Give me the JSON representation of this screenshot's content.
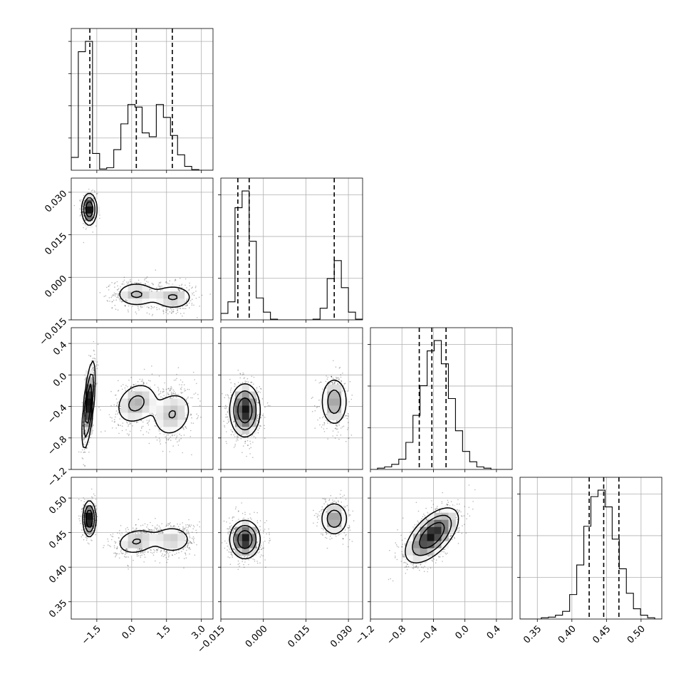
{
  "chart_data": {
    "type": "corner",
    "style": {
      "grid": true,
      "quantile_lines": "dashed",
      "points_color": "#000000",
      "lines_color": "#000000"
    },
    "parameters": [
      {
        "range": [
          -2.6,
          3.5
        ],
        "ticks": [
          -1.5,
          0.0,
          1.5,
          3.0
        ],
        "tick_labels": [
          "−1.5",
          "0.0",
          "1.5",
          "3.0"
        ],
        "quantiles": [
          -1.8,
          0.2,
          1.75
        ],
        "modes": [
          {
            "mu": -1.85,
            "sigma": 0.15,
            "w": 0.33
          },
          {
            "mu": 0.2,
            "sigma": 0.5,
            "w": 0.33
          },
          {
            "mu": 1.75,
            "sigma": 0.5,
            "w": 0.34
          }
        ],
        "histogram": [
          0.1,
          0.92,
          1.0,
          0.13,
          0.01,
          0.02,
          0.16,
          0.36,
          0.51,
          0.49,
          0.29,
          0.26,
          0.51,
          0.41,
          0.27,
          0.12,
          0.03,
          0.005,
          0.0,
          0.0
        ]
      },
      {
        "range": [
          -0.015,
          0.035
        ],
        "ticks": [
          -0.015,
          0.0,
          0.015,
          0.03
        ],
        "tick_labels": [
          "−0.015",
          "0.000",
          "0.015",
          "0.030"
        ],
        "quantiles": [
          -0.009,
          -0.005,
          0.025
        ],
        "modes": [
          {
            "mu": -0.007,
            "sigma": 0.002,
            "w": 0.67
          },
          {
            "mu": 0.025,
            "sigma": 0.002,
            "w": 0.33
          }
        ],
        "histogram": [
          0.05,
          0.14,
          0.87,
          1.0,
          0.61,
          0.17,
          0.06,
          0.005,
          0.0,
          0.0,
          0.0,
          0.0,
          0.0,
          0.005,
          0.09,
          0.32,
          0.46,
          0.25,
          0.06,
          0.005
        ]
      },
      {
        "range": [
          -1.2,
          0.6
        ],
        "ticks": [
          -1.2,
          -0.8,
          -0.4,
          0.0,
          0.4
        ],
        "tick_labels": [
          "−1.2",
          "−0.8",
          "−0.4",
          "0.0",
          "0.4"
        ],
        "quantiles": [
          -0.58,
          -0.42,
          -0.24
        ],
        "modes": [
          {
            "mu": -0.42,
            "sigma": 0.17,
            "w": 1.0
          }
        ],
        "histogram": [
          0.0,
          0.01,
          0.02,
          0.04,
          0.08,
          0.21,
          0.42,
          0.65,
          0.92,
          1.0,
          0.82,
          0.55,
          0.3,
          0.14,
          0.06,
          0.02,
          0.01,
          0.0,
          0.0,
          0.0
        ]
      },
      {
        "range": [
          0.325,
          0.53
        ],
        "ticks": [
          0.35,
          0.4,
          0.45,
          0.5
        ],
        "tick_labels": [
          "0.35",
          "0.40",
          "0.45",
          "0.50"
        ],
        "quantiles": [
          0.425,
          0.446,
          0.468
        ],
        "modes": [
          {
            "mu": 0.446,
            "sigma": 0.02,
            "w": 1.0
          }
        ],
        "histogram": [
          0.0,
          0.0,
          0.0,
          0.01,
          0.015,
          0.03,
          0.06,
          0.19,
          0.42,
          0.72,
          0.95,
          1.0,
          0.87,
          0.62,
          0.39,
          0.2,
          0.08,
          0.03,
          0.01,
          0.0
        ]
      }
    ],
    "diagonal_yticks": [
      4,
      3,
      3,
      3
    ],
    "blobs": [
      {
        "pair": [
          1,
          0
        ],
        "comps": [
          {
            "mx": -1.82,
            "my": 0.024,
            "sx": 0.16,
            "sy": 0.0028,
            "rho": 0.0,
            "w": 0.33
          },
          {
            "mx": 0.2,
            "my": -0.006,
            "sx": 0.5,
            "sy": 0.0025,
            "rho": 0.0,
            "w": 0.34
          },
          {
            "mx": 1.78,
            "my": -0.007,
            "sx": 0.5,
            "sy": 0.0025,
            "rho": 0.0,
            "w": 0.33
          }
        ]
      },
      {
        "pair": [
          2,
          0
        ],
        "comps": [
          {
            "mx": -1.85,
            "my": -0.38,
            "sx": 0.14,
            "sy": 0.28,
            "rho": 0.65,
            "w": 0.33
          },
          {
            "mx": 0.2,
            "my": -0.36,
            "sx": 0.5,
            "sy": 0.15,
            "rho": 0.25,
            "w": 0.34
          },
          {
            "mx": 1.75,
            "my": -0.5,
            "sx": 0.5,
            "sy": 0.17,
            "rho": 0.2,
            "w": 0.33
          }
        ]
      },
      {
        "pair": [
          2,
          1
        ],
        "comps": [
          {
            "mx": -0.0065,
            "my": -0.45,
            "sx": 0.0027,
            "sy": 0.17,
            "rho": 0.0,
            "w": 0.67
          },
          {
            "mx": 0.025,
            "my": -0.34,
            "sx": 0.0026,
            "sy": 0.17,
            "rho": 0.0,
            "w": 0.33
          }
        ]
      },
      {
        "pair": [
          3,
          0
        ],
        "comps": [
          {
            "mx": -1.82,
            "my": 0.47,
            "sx": 0.14,
            "sy": 0.013,
            "rho": 0.0,
            "w": 0.33
          },
          {
            "mx": 0.2,
            "my": 0.437,
            "sx": 0.5,
            "sy": 0.011,
            "rho": 0.2,
            "w": 0.34
          },
          {
            "mx": 1.75,
            "my": 0.44,
            "sx": 0.5,
            "sy": 0.012,
            "rho": 0.0,
            "w": 0.33
          }
        ]
      },
      {
        "pair": [
          3,
          1
        ],
        "comps": [
          {
            "mx": -0.0065,
            "my": 0.44,
            "sx": 0.0027,
            "sy": 0.014,
            "rho": 0.0,
            "w": 0.67
          },
          {
            "mx": 0.025,
            "my": 0.47,
            "sx": 0.0026,
            "sy": 0.013,
            "rho": 0.0,
            "w": 0.33
          }
        ]
      },
      {
        "pair": [
          3,
          2
        ],
        "comps": [
          {
            "mx": -0.42,
            "my": 0.446,
            "sx": 0.17,
            "sy": 0.02,
            "rho": 0.6,
            "w": 1.0
          }
        ]
      }
    ]
  }
}
